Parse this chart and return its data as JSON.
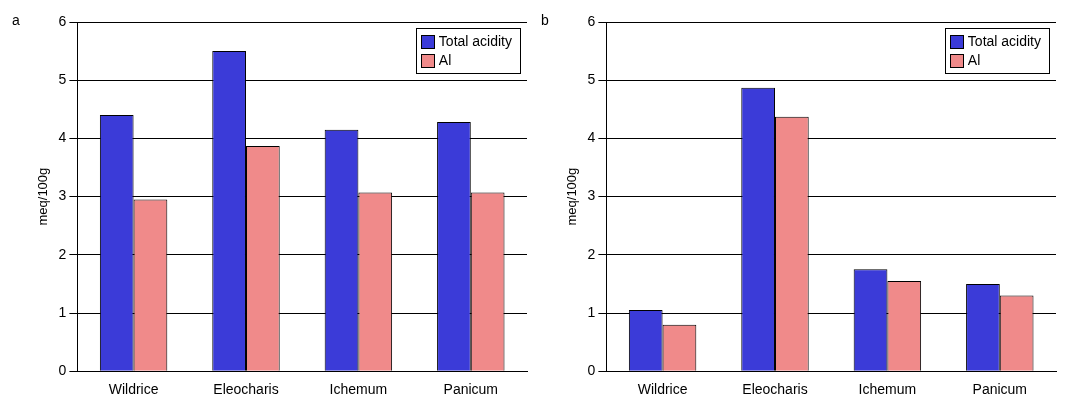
{
  "chart_data": [
    {
      "type": "bar",
      "annotations": [
        "a"
      ],
      "ylabel": "meq/100g",
      "categories": [
        "Wildrice",
        "Eleocharis",
        "Ichemum",
        "Panicum"
      ],
      "series": [
        {
          "name": "Total acidity",
          "color": "#3b3bd8",
          "values": [
            4.4,
            5.5,
            4.15,
            4.28
          ]
        },
        {
          "name": "Al",
          "color": "#f08a8a",
          "values": [
            2.95,
            3.87,
            3.07,
            3.07
          ]
        }
      ],
      "ylim": [
        0,
        6
      ],
      "yticks": [
        0,
        1,
        2,
        3,
        4,
        5,
        6
      ],
      "grid": "y",
      "legend": "top right"
    },
    {
      "type": "bar",
      "annotations": [
        "b"
      ],
      "ylabel": "meq/100g",
      "categories": [
        "Wildrice",
        "Eleocharis",
        "Ichemum",
        "Panicum"
      ],
      "series": [
        {
          "name": "Total acidity",
          "color": "#3b3bd8",
          "values": [
            1.05,
            4.87,
            1.75,
            1.5
          ]
        },
        {
          "name": "Al",
          "color": "#f08a8a",
          "values": [
            0.8,
            4.37,
            1.55,
            1.3
          ]
        }
      ],
      "ylim": [
        0,
        6
      ],
      "yticks": [
        0,
        1,
        2,
        3,
        4,
        5,
        6
      ],
      "grid": "y",
      "legend": "top right"
    }
  ]
}
